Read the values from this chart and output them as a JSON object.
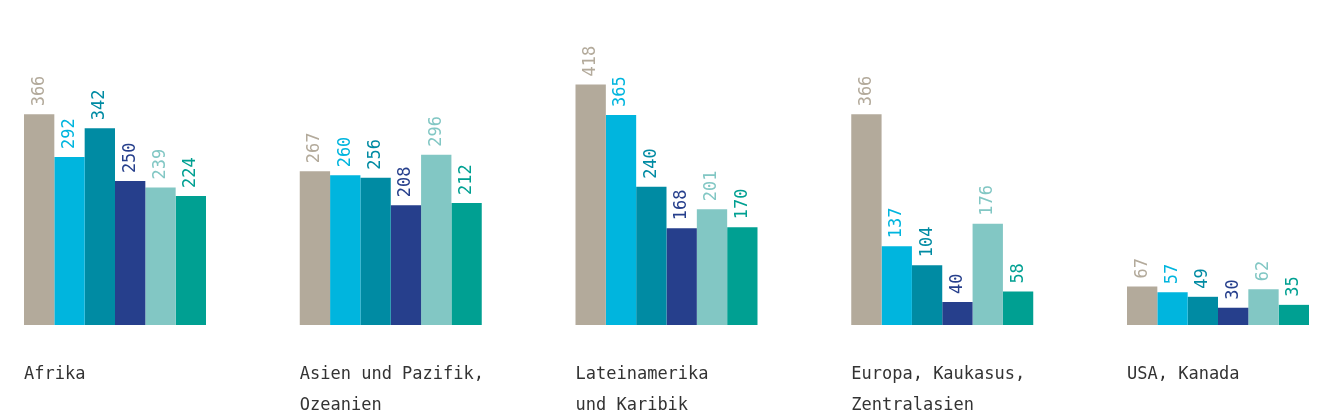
{
  "chart_data": {
    "type": "bar",
    "categories": [
      "Afrika",
      "Asien und Pazifik, Ozeanien",
      "Lateinamerika und Karibik",
      "Europa, Kaukasus, Zentralasien",
      "USA, Kanada"
    ],
    "series": [
      {
        "color": "#b3aa9b",
        "values": [
          366,
          267,
          418,
          366,
          67
        ]
      },
      {
        "color": "#00b5de",
        "values": [
          292,
          260,
          365,
          137,
          57
        ]
      },
      {
        "color": "#008ba3",
        "values": [
          342,
          256,
          240,
          104,
          49
        ]
      },
      {
        "color": "#263f8c",
        "values": [
          250,
          208,
          168,
          40,
          30
        ]
      },
      {
        "color": "#82c7c4",
        "values": [
          239,
          296,
          201,
          176,
          62
        ]
      },
      {
        "color": "#00a092",
        "values": [
          224,
          212,
          170,
          58,
          35
        ]
      }
    ],
    "data_labels": true,
    "legend": false
  }
}
